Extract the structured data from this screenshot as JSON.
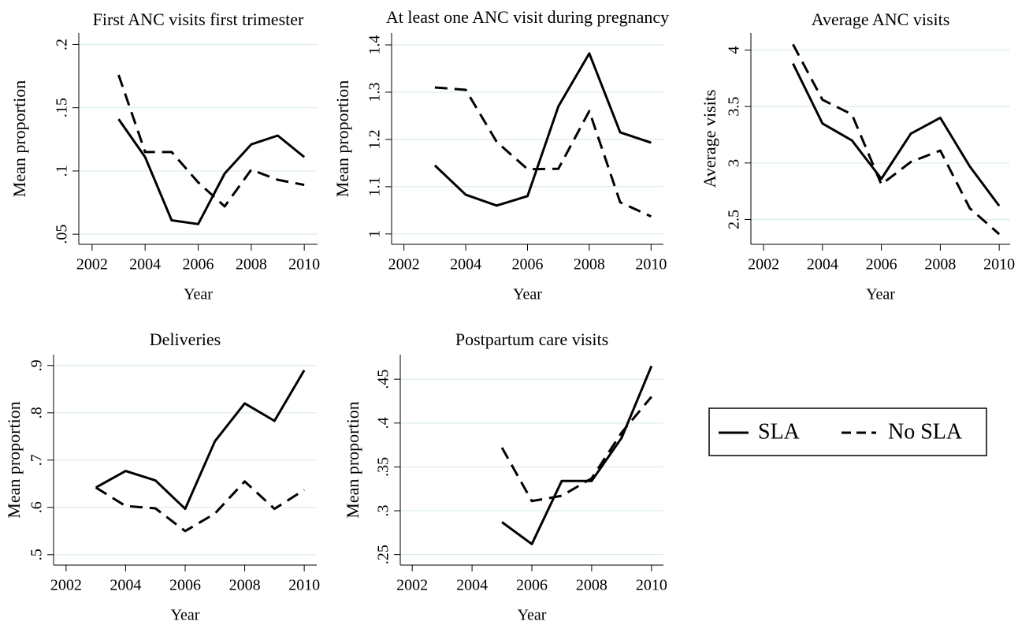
{
  "chart_data": [
    {
      "type": "line",
      "title": "First ANC visits first trimester",
      "y_label": "Mean proportion",
      "x_label": "Year",
      "x": [
        2003,
        2004,
        2005,
        2006,
        2007,
        2008,
        2009,
        2010
      ],
      "series": [
        {
          "style": "solid",
          "color": "#000000",
          "values": [
            0.141,
            0.111,
            0.061,
            0.058,
            0.098,
            0.121,
            0.128,
            0.111
          ]
        },
        {
          "style": "dashed",
          "color": "#000000",
          "values": [
            0.176,
            0.115,
            0.115,
            0.091,
            0.072,
            0.101,
            0.093,
            0.089
          ]
        }
      ],
      "xlim": [
        2001.5,
        2010.5
      ],
      "xticks": [
        2002,
        2004,
        2006,
        2008,
        2010
      ],
      "ylim": [
        0.042,
        0.209
      ],
      "yticks": [
        {
          "value": 0.05,
          "label": ".05"
        },
        {
          "value": 0.1,
          "label": ".1"
        },
        {
          "value": 0.15,
          "label": ".15"
        },
        {
          "value": 0.2,
          "label": ".2"
        }
      ],
      "grid": true
    },
    {
      "type": "line",
      "title": "At least one ANC visit during pregnancy",
      "y_label": "Mean proportion",
      "x_label": "Year",
      "x": [
        2003,
        2004,
        2005,
        2006,
        2007,
        2008,
        2009,
        2010
      ],
      "series": [
        {
          "style": "solid",
          "color": "#000000",
          "values": [
            1.145,
            1.083,
            1.06,
            1.08,
            1.27,
            1.382,
            1.215,
            1.193
          ]
        },
        {
          "style": "dashed",
          "color": "#000000",
          "values": [
            1.31,
            1.305,
            1.195,
            1.137,
            1.138,
            1.26,
            1.067,
            1.037
          ]
        }
      ],
      "xlim": [
        2001.6,
        2010.4
      ],
      "xticks": [
        2002,
        2004,
        2006,
        2008,
        2010
      ],
      "ylim": [
        0.978,
        1.425
      ],
      "yticks": [
        1,
        1.1,
        1.2,
        1.3,
        1.4
      ],
      "grid": true
    },
    {
      "type": "line",
      "title": "Average ANC visits",
      "y_label": "Average visits",
      "x_label": "Year",
      "x": [
        2003,
        2004,
        2005,
        2006,
        2007,
        2008,
        2009,
        2010
      ],
      "series": [
        {
          "style": "solid",
          "color": "#000000",
          "values": [
            3.88,
            3.35,
            3.2,
            2.86,
            3.26,
            3.4,
            2.97,
            2.62
          ]
        },
        {
          "style": "dashed",
          "color": "#000000",
          "values": [
            4.05,
            3.56,
            3.43,
            2.81,
            3.01,
            3.11,
            2.6,
            2.37
          ]
        }
      ],
      "xlim": [
        2001.57,
        2010.37
      ],
      "xticks": [
        2002,
        2004,
        2006,
        2008,
        2010
      ],
      "ylim": [
        2.28,
        4.15
      ],
      "yticks": [
        2.5,
        3,
        3.5,
        4
      ],
      "grid": true
    },
    {
      "type": "line",
      "title": "Deliveries",
      "y_label": "Mean proportion",
      "x_label": "Year",
      "x": [
        2003,
        2004,
        2005,
        2006,
        2007,
        2008,
        2009,
        2010
      ],
      "series": [
        {
          "style": "solid",
          "color": "#000000",
          "values": [
            0.642,
            0.677,
            0.657,
            0.597,
            0.74,
            0.82,
            0.783,
            0.89
          ]
        },
        {
          "style": "dashed",
          "color": "#000000",
          "values": [
            0.642,
            0.603,
            0.598,
            0.55,
            0.587,
            0.655,
            0.597,
            0.637
          ]
        }
      ],
      "xlim": [
        2001.58,
        2010.42
      ],
      "xticks": [
        2002,
        2004,
        2006,
        2008,
        2010
      ],
      "ylim": [
        0.478,
        0.923
      ],
      "yticks": [
        {
          "value": 0.5,
          "label": ".5"
        },
        {
          "value": 0.6,
          "label": ".6"
        },
        {
          "value": 0.7,
          "label": ".7"
        },
        {
          "value": 0.8,
          "label": ".8"
        },
        {
          "value": 0.9,
          "label": ".9"
        }
      ],
      "grid": true
    },
    {
      "type": "line",
      "title": "Postpartum care visits",
      "y_label": "Mean proportion",
      "x_label": "Year",
      "x": [
        2005,
        2006,
        2007,
        2008,
        2009,
        2010
      ],
      "series": [
        {
          "style": "solid",
          "color": "#000000",
          "values": [
            0.287,
            0.262,
            0.334,
            0.334,
            0.383,
            0.465
          ]
        },
        {
          "style": "dashed",
          "color": "#000000",
          "values": [
            0.372,
            0.311,
            0.317,
            0.337,
            0.389,
            0.43
          ]
        }
      ],
      "xlim": [
        2001.6,
        2010.4
      ],
      "xticks": [
        2002,
        2004,
        2006,
        2008,
        2010
      ],
      "ylim": [
        0.238,
        0.478
      ],
      "yticks": [
        {
          "value": 0.25,
          "label": ".25"
        },
        {
          "value": 0.3,
          "label": ".3"
        },
        {
          "value": 0.35,
          "label": ".35"
        },
        {
          "value": 0.4,
          "label": ".4"
        },
        {
          "value": 0.45,
          "label": ".45"
        }
      ],
      "grid": true
    }
  ],
  "legend": [
    {
      "name": "SLA",
      "style": "solid"
    },
    {
      "name": "No SLA",
      "style": "dashed"
    }
  ]
}
